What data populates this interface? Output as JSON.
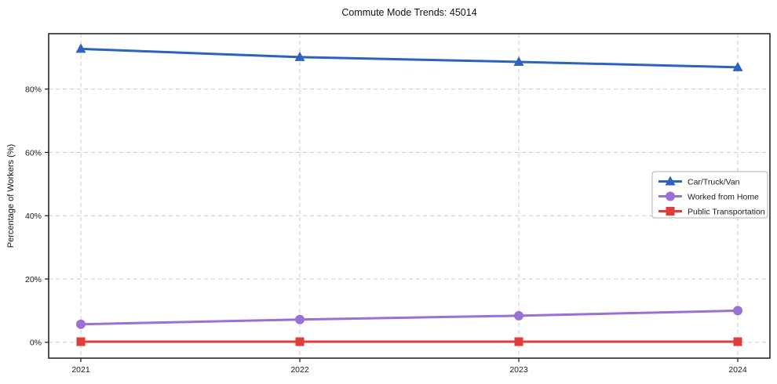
{
  "chart_data": {
    "type": "line",
    "title": "Commute Mode Trends: 45014",
    "xlabel": "",
    "ylabel": "Percentage of Workers (%)",
    "categories": [
      "2021",
      "2022",
      "2023",
      "2024"
    ],
    "series": [
      {
        "name": "Car/Truck/Van",
        "values": [
          92.7,
          90.1,
          88.6,
          86.9
        ],
        "color": "#2d63be",
        "marker": "triangle"
      },
      {
        "name": "Worked from Home",
        "values": [
          5.7,
          7.2,
          8.4,
          10.0
        ],
        "color": "#9a6fd6",
        "marker": "circle"
      },
      {
        "name": "Public Transportation",
        "values": [
          0.2,
          0.2,
          0.2,
          0.2
        ],
        "color": "#e23b3b",
        "marker": "square"
      }
    ],
    "yticks": [
      0,
      20,
      40,
      60,
      80
    ],
    "ytick_labels": [
      "0%",
      "20%",
      "40%",
      "60%",
      "80%"
    ],
    "ylim": [
      -5,
      97.5
    ],
    "grid": "dashed-both-axes",
    "legend_position": "center-right",
    "legend_entries": [
      "Car/Truck/Van",
      "Worked from Home",
      "Public Transportation"
    ]
  },
  "colors": {
    "background": "#ffffff",
    "grid": "#cccccc",
    "axis": "#1a1a1a",
    "text": "#1a1a1a",
    "legend_border": "#b3b3b3",
    "legend_background": "#ffffff"
  }
}
